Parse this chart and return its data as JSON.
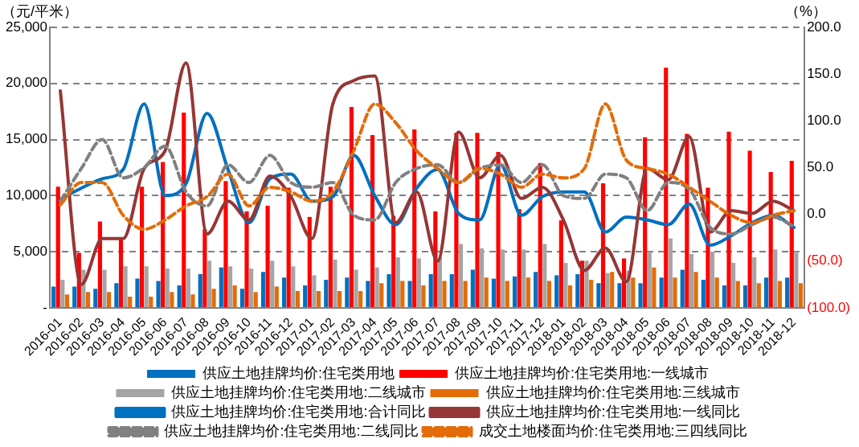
{
  "chart_data": {
    "type": "bar",
    "ylabel": "（元/平米）",
    "y2label": "（%）",
    "categories": [
      "2016-01",
      "2016-02",
      "2016-03",
      "2016-04",
      "2016-05",
      "2016-06",
      "2016-07",
      "2016-08",
      "2016-09",
      "2016-10",
      "2016-11",
      "2016-12",
      "2017-01",
      "2017-02",
      "2017-03",
      "2017-04",
      "2017-05",
      "2017-06",
      "2017-07",
      "2017-08",
      "2017-09",
      "2017-10",
      "2017-11",
      "2017-12",
      "2018-01",
      "2018-02",
      "2018-03",
      "2018-04",
      "2018-05",
      "2018-06",
      "2018-07",
      "2018-08",
      "2018-09",
      "2018-10",
      "2018-11",
      "2018-12"
    ],
    "ylim": [
      0,
      25000
    ],
    "yticks": [
      {
        "value": 0,
        "label": "-"
      },
      {
        "value": 5000,
        "label": "5,000"
      },
      {
        "value": 10000,
        "label": "10,000"
      },
      {
        "value": 15000,
        "label": "15,000"
      },
      {
        "value": 20000,
        "label": "20,000"
      },
      {
        "value": 25000,
        "label": "25,000"
      }
    ],
    "y2lim": [
      -100,
      200
    ],
    "y2ticks": [
      {
        "value": -100,
        "label": "(100.0)"
      },
      {
        "value": -50,
        "label": "(50.0)"
      },
      {
        "value": 0,
        "label": "0.0"
      },
      {
        "value": 50,
        "label": "50.0"
      },
      {
        "value": 100,
        "label": "100.0"
      },
      {
        "value": 150,
        "label": "150.0"
      },
      {
        "value": 200,
        "label": "200.0"
      }
    ],
    "grid": "y",
    "legend": "bottom",
    "series": [
      {
        "name": "供应土地挂牌均价:住宅类用地",
        "color": "#0070c0",
        "values": [
          1900,
          1900,
          1700,
          2200,
          2600,
          2400,
          2000,
          3000,
          3600,
          1700,
          3200,
          2700,
          2000,
          2500,
          2700,
          2400,
          3000,
          2400,
          3000,
          3000,
          3400,
          2600,
          2800,
          3200,
          2900,
          3000,
          2200,
          2200,
          2200,
          2700,
          3400,
          2500,
          2000,
          2000,
          2700,
          2700
        ]
      },
      {
        "name": "供应土地挂牌均价:住宅类用地:一线城市",
        "color": "#ff0000",
        "values": [
          10800,
          4900,
          7700,
          6200,
          10800,
          13000,
          17400,
          7000,
          11300,
          8600,
          9100,
          10700,
          8100,
          10800,
          17900,
          15400,
          8200,
          15900,
          8600,
          15600,
          15600,
          13900,
          8800,
          12900,
          7800,
          4200,
          11100,
          4400,
          15200,
          21400,
          15500,
          10700,
          15700,
          14000,
          12100,
          13100
        ]
      },
      {
        "name": "供应土地挂牌均价:住宅类用地:二线城市",
        "color": "#a5a5a5",
        "values": [
          2500,
          3400,
          3400,
          3700,
          3700,
          3500,
          3500,
          4200,
          3700,
          3500,
          4200,
          3700,
          2900,
          4300,
          3400,
          3600,
          4500,
          4400,
          4500,
          5700,
          5300,
          5200,
          5200,
          5700,
          4000,
          4200,
          3100,
          3300,
          5000,
          6200,
          4800,
          5000,
          4000,
          4500,
          5200,
          5000
        ]
      },
      {
        "name": "供应土地挂牌均价:住宅类用地:三线城市",
        "color": "#e36c09",
        "values": [
          1200,
          1400,
          1400,
          1000,
          1000,
          1400,
          1200,
          1700,
          2000,
          1400,
          1900,
          1500,
          1500,
          1500,
          1500,
          2200,
          2400,
          2000,
          2400,
          2400,
          2700,
          2400,
          2700,
          2400,
          2000,
          2500,
          3200,
          2700,
          3600,
          2700,
          3200,
          2700,
          2400,
          2200,
          2400,
          2200
        ]
      },
      {
        "name": "供应土地挂牌均价:住宅类用地:合计同比",
        "type": "line",
        "axis": "y2",
        "line_style": "solid",
        "color": "#0070c0",
        "values": [
          16,
          28,
          38,
          48,
          118,
          20,
          33,
          108,
          48,
          -9,
          38,
          43,
          14,
          19,
          63,
          20,
          -11,
          28,
          48,
          1,
          -6,
          53,
          -1,
          19,
          24,
          24,
          -19,
          -3,
          -6,
          -11,
          11,
          -33,
          -23,
          -9,
          -1,
          -14
        ]
      },
      {
        "name": "供应土地挂牌均价:住宅类用地:一线同比",
        "type": "line",
        "axis": "y2",
        "line_style": "solid",
        "color": "#953735",
        "values": [
          132,
          -75,
          -26,
          -26,
          49,
          68,
          162,
          -21,
          14,
          -6,
          41,
          19,
          -26,
          118,
          143,
          148,
          -9,
          24,
          -50,
          88,
          39,
          63,
          17,
          29,
          -6,
          -60,
          -36,
          -72,
          49,
          37,
          83,
          -19,
          4,
          1,
          14,
          4
        ]
      },
      {
        "name": "供应土地挂牌均价:住宅类用地:二线同比",
        "type": "line",
        "axis": "y2",
        "line_style": "dashed",
        "color": "#808080",
        "values": [
          14,
          49,
          80,
          39,
          50,
          73,
          24,
          9,
          53,
          34,
          63,
          34,
          29,
          34,
          -1,
          -6,
          34,
          49,
          53,
          34,
          49,
          53,
          34,
          53,
          20,
          17,
          43,
          39,
          4,
          34,
          27,
          -14,
          -21,
          -11,
          -3,
          -13
        ]
      },
      {
        "name": "成交土地楼面均价:住宅类用地:三四线同比",
        "type": "line",
        "axis": "y2",
        "line_style": "dashed",
        "color": "#e36c09",
        "values": [
          10,
          34,
          34,
          -1,
          -16,
          -6,
          9,
          19,
          43,
          9,
          29,
          24,
          14,
          24,
          68,
          118,
          98,
          68,
          49,
          34,
          49,
          43,
          29,
          43,
          39,
          49,
          118,
          58,
          49,
          43,
          29,
          14,
          -1,
          -9,
          -1,
          4
        ]
      }
    ]
  }
}
